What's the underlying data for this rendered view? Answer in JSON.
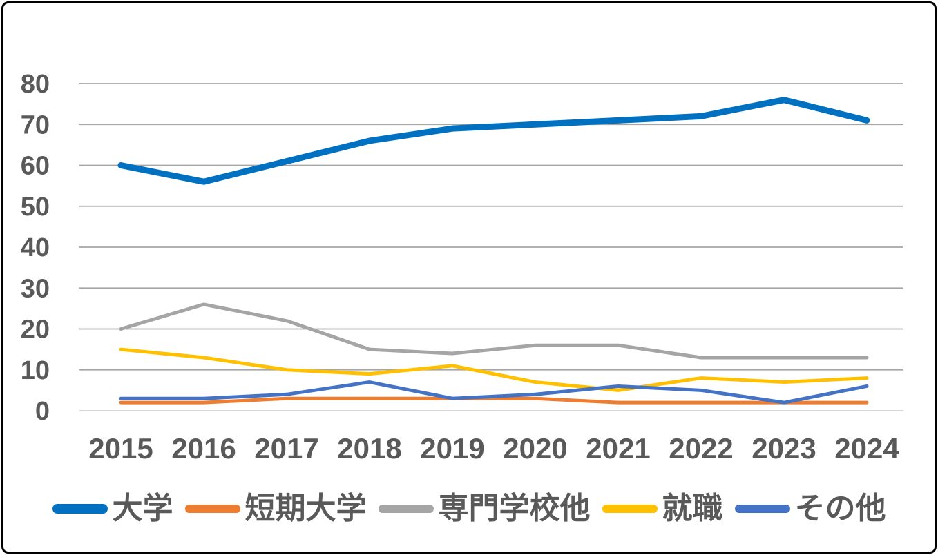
{
  "chart_data": {
    "type": "line",
    "title": "",
    "xlabel": "",
    "ylabel": "",
    "categories": [
      "2015",
      "2016",
      "2017",
      "2018",
      "2019",
      "2020",
      "2021",
      "2022",
      "2023",
      "2024"
    ],
    "series": [
      {
        "name": "大学",
        "color": "#0070C0",
        "stroke_width": 9,
        "values": [
          60,
          56,
          61,
          66,
          69,
          70,
          71,
          72,
          76,
          71
        ]
      },
      {
        "name": "短期大学",
        "color": "#ED7D31",
        "stroke_width": 5,
        "values": [
          2,
          2,
          3,
          3,
          3,
          3,
          2,
          2,
          2,
          2
        ]
      },
      {
        "name": "専門学校他",
        "color": "#A5A5A5",
        "stroke_width": 5,
        "values": [
          20,
          26,
          22,
          15,
          14,
          16,
          16,
          13,
          13,
          13
        ]
      },
      {
        "name": "就職",
        "color": "#FFC000",
        "stroke_width": 5,
        "values": [
          15,
          13,
          10,
          9,
          11,
          7,
          5,
          8,
          7,
          8
        ]
      },
      {
        "name": "その他",
        "color": "#4472C4",
        "stroke_width": 5,
        "values": [
          3,
          3,
          4,
          7,
          3,
          4,
          6,
          5,
          2,
          6
        ]
      }
    ],
    "ylim": [
      0,
      80
    ],
    "ytick_step": 10,
    "ytick_labels": [
      "0",
      "10",
      "20",
      "30",
      "40",
      "50",
      "60",
      "70",
      "80"
    ],
    "grid": true,
    "legend_position": "bottom",
    "colors": {
      "axis_label": "#595959",
      "gridline": "#A6A6A6",
      "zero_line": "#D9D9D9",
      "background": "#FFFFFF",
      "border": "#000000"
    }
  }
}
